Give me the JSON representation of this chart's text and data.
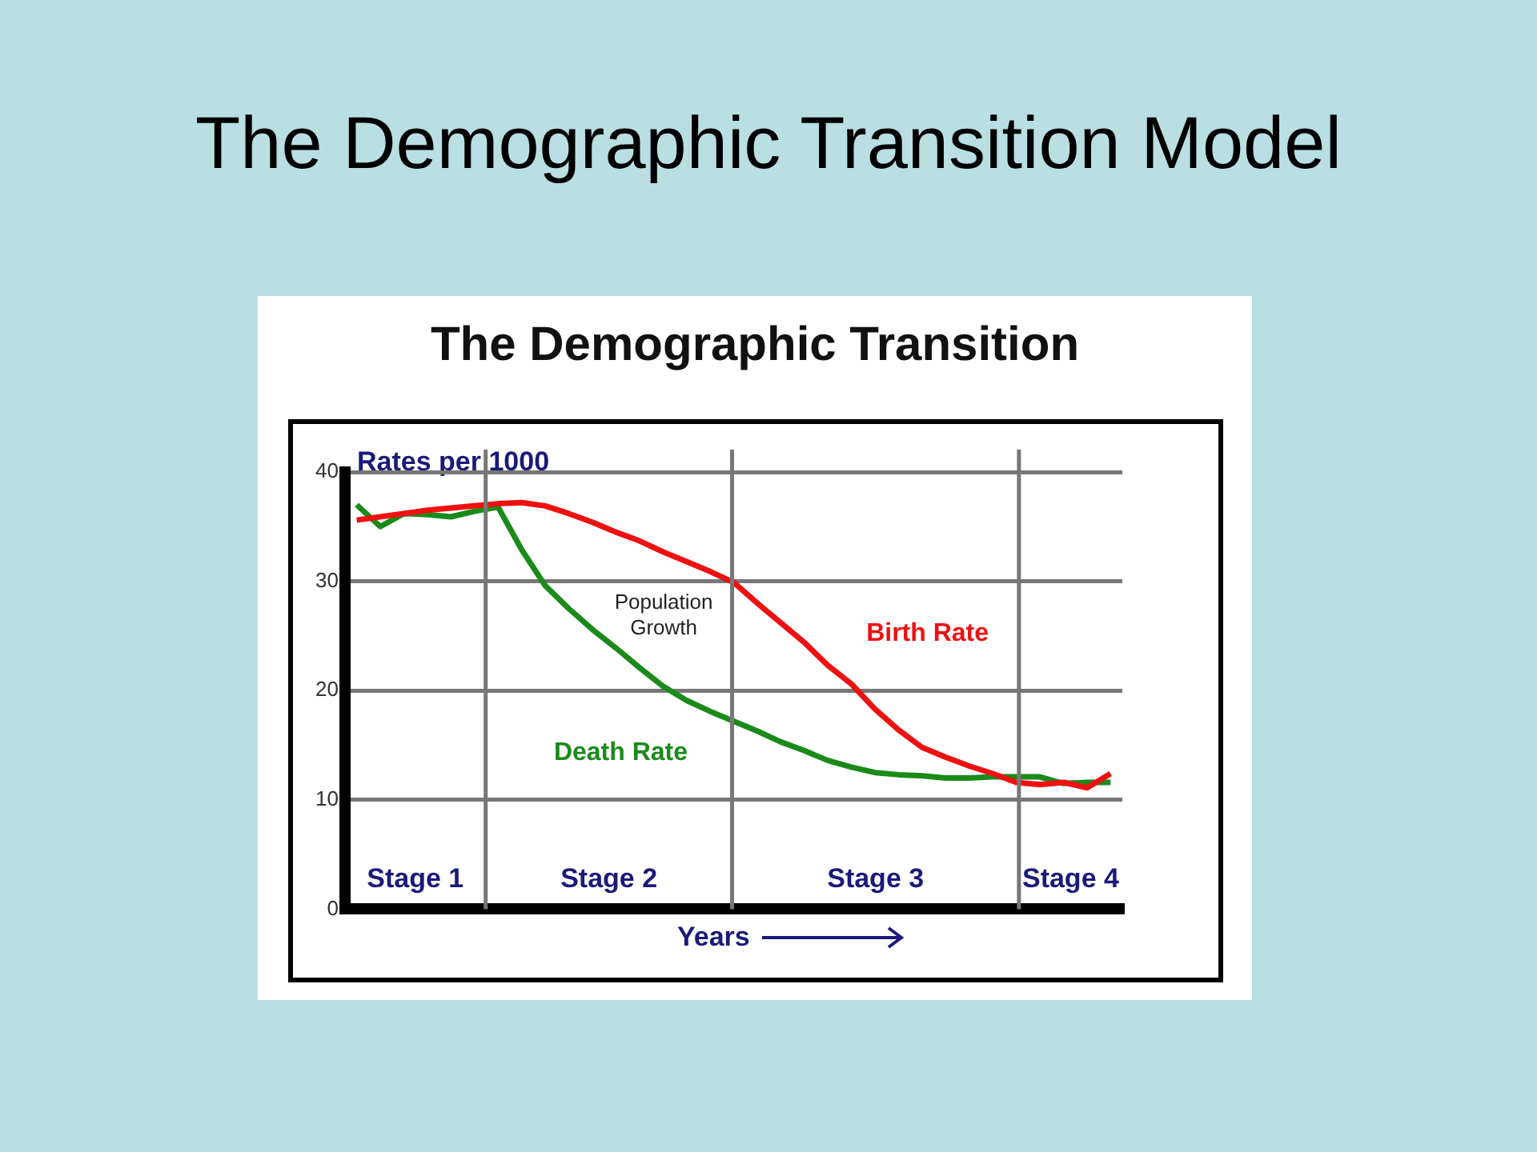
{
  "chart_data": {
    "type": "line",
    "title": "The Demographic Transition Model",
    "subtitle": "The Demographic Transition",
    "xlabel": "Years",
    "ylabel": "Rates per 1000",
    "categories": [
      null,
      null,
      null,
      null,
      null,
      null,
      null,
      null,
      null,
      null,
      null,
      null,
      null,
      null,
      null,
      null,
      null,
      null,
      null,
      null,
      null,
      null,
      null,
      null,
      null,
      null,
      null,
      null,
      null,
      null,
      null,
      null,
      null
    ],
    "ylim": [
      0,
      40
    ],
    "yticks": [
      0,
      10,
      20,
      30,
      40
    ],
    "tick_labels": "y",
    "grid": "y",
    "marker": "none",
    "line_style": "solid",
    "series": [
      {
        "name": "Birth Rate",
        "color": "#ee1111",
        "values": [
          35.6,
          35.9,
          36.2,
          36.5,
          36.7,
          36.9,
          37.1,
          37.2,
          36.9,
          36.2,
          35.4,
          34.5,
          33.7,
          32.7,
          31.8,
          30.9,
          29.9,
          28,
          26.2,
          24.4,
          22.3,
          20.6,
          18.3,
          16.4,
          14.8,
          13.9,
          13.1,
          12.4,
          11.6,
          11.4,
          11.6,
          11.1,
          12.4
        ]
      },
      {
        "name": "Death Rate",
        "color": "#1a8a1a",
        "values": [
          37,
          35,
          36.2,
          36.1,
          35.9,
          36.4,
          36.8,
          32.9,
          29.6,
          27.5,
          25.6,
          23.9,
          22.1,
          20.4,
          19.1,
          18.1,
          17.2,
          16.3,
          15.3,
          14.5,
          13.6,
          13,
          12.5,
          12.3,
          12.2,
          12,
          12,
          12.1,
          12.1,
          12.1,
          11.5,
          11.6,
          11.6
        ]
      }
    ],
    "annotations": [
      "Stage 1",
      "Stage 2",
      "Stage 3",
      "Stage 4",
      "Population Growth"
    ]
  }
}
